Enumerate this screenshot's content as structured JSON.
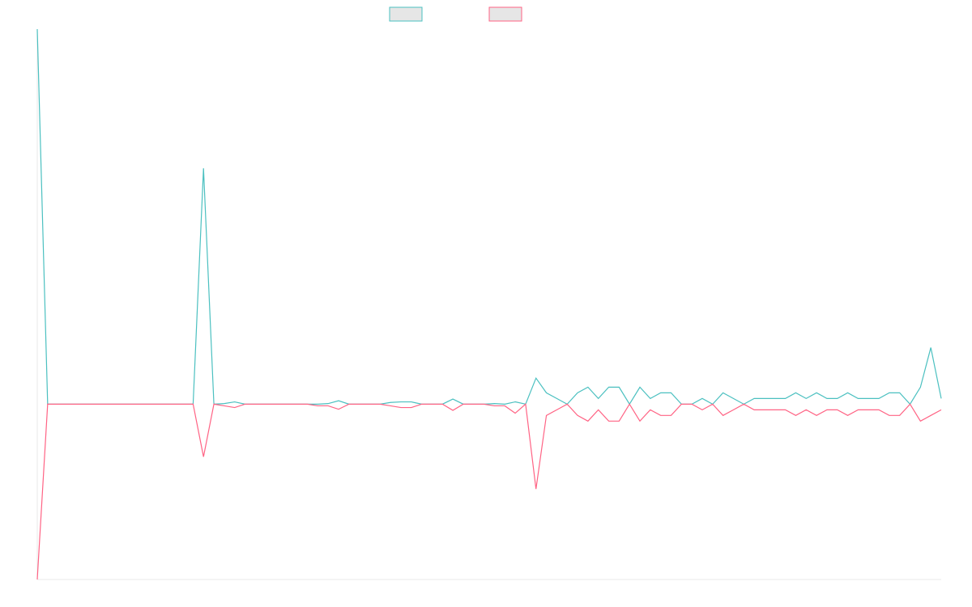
{
  "chart_data": {
    "type": "line",
    "categories": [
      null,
      null,
      null,
      null,
      null,
      null,
      null,
      null,
      null,
      null,
      null,
      null,
      null,
      null,
      null,
      null,
      null,
      null,
      null,
      null,
      null,
      null,
      null,
      null,
      null,
      null,
      null,
      null,
      null,
      null,
      null,
      null,
      null,
      null,
      null,
      null,
      null,
      null,
      null,
      null,
      null,
      null,
      null,
      null,
      null,
      null,
      null,
      null,
      null,
      null,
      null,
      null,
      null,
      null,
      null,
      null,
      null,
      null,
      null,
      null,
      null,
      null,
      null,
      null,
      null,
      null,
      null,
      null,
      null,
      null,
      null,
      null,
      null,
      null,
      null,
      null,
      null,
      null,
      null,
      null,
      null,
      null,
      null,
      null,
      null,
      null,
      null,
      null
    ],
    "series": [
      {
        "color": "#4bc0c0",
        "values": [
          66.3,
          0,
          0,
          0,
          0,
          0,
          0,
          0,
          0,
          0,
          0,
          0,
          0,
          0,
          0,
          0,
          41.7,
          0,
          0.1,
          0.4,
          0,
          0,
          0,
          0,
          0,
          0,
          0,
          0,
          0.1,
          0.6,
          0,
          0,
          0,
          0,
          0.3,
          0.4,
          0.4,
          0,
          0,
          0,
          0.9,
          0,
          0,
          0,
          0.1,
          0,
          0.4,
          0,
          4.6,
          2,
          1,
          0,
          2,
          3,
          1,
          3,
          3,
          0,
          3,
          1,
          2,
          2,
          0,
          0,
          1,
          0,
          2,
          1,
          0,
          1,
          1,
          1,
          1,
          2,
          1,
          2,
          1,
          1,
          2,
          1,
          1,
          1,
          2,
          2,
          0,
          3,
          10,
          1
        ]
      },
      {
        "color": "#ff6384",
        "values": [
          -31,
          0,
          0,
          0,
          0,
          0,
          0,
          0,
          0,
          0,
          0,
          0,
          0,
          0,
          0,
          0,
          -9.3,
          0,
          -0.3,
          -0.6,
          0,
          0,
          0,
          0,
          0,
          0,
          0,
          -0.3,
          -0.3,
          -0.9,
          0,
          0,
          0,
          0,
          -0.3,
          -0.6,
          -0.6,
          0,
          0,
          0,
          -1.1,
          0,
          0,
          0,
          -0.3,
          -0.3,
          -1.6,
          0,
          -15,
          -2,
          -1,
          0,
          -2,
          -3,
          -1,
          -3,
          -3,
          0,
          -3,
          -1,
          -2,
          -2,
          0,
          0,
          -1,
          0,
          -2,
          -1,
          0,
          -1,
          -1,
          -1,
          -1,
          -2,
          -1,
          -2,
          -1,
          -1,
          -2,
          -1,
          -1,
          -1,
          -2,
          -2,
          0,
          -3,
          -2,
          -1
        ]
      }
    ],
    "ylim": [
      -31,
      66.3
    ],
    "legend_fill": "#e6e6e6"
  }
}
